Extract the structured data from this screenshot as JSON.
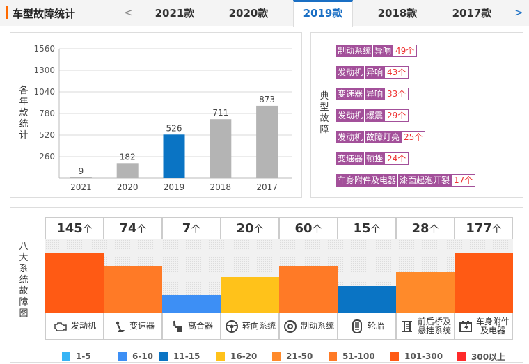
{
  "header": {
    "title": "车型故障统计",
    "prev_arrow": "<",
    "next_arrow": ">",
    "tabs": [
      {
        "label": "2021款",
        "active": false
      },
      {
        "label": "2020款",
        "active": false
      },
      {
        "label": "2019款",
        "active": true
      },
      {
        "label": "2018款",
        "active": false
      },
      {
        "label": "2017款",
        "active": false
      }
    ]
  },
  "chart_data": {
    "type": "bar",
    "ylabel": "各年款统计",
    "categories": [
      "2021",
      "2020",
      "2019",
      "2018",
      "2017"
    ],
    "values": [
      9,
      182,
      526,
      711,
      873
    ],
    "highlight": "2019",
    "yticks": [
      260,
      520,
      780,
      1040,
      1300,
      1560
    ],
    "ylim": [
      0,
      1560
    ],
    "colors": {
      "bar": "#b4b4b4",
      "highlight": "#0a74c4"
    }
  },
  "faults": {
    "label": "典型故障",
    "items": [
      {
        "system": "制动系统",
        "issue": "异响",
        "count": "49个"
      },
      {
        "system": "发动机",
        "issue": "异响",
        "count": "43个"
      },
      {
        "system": "变速器",
        "issue": "异响",
        "count": "33个"
      },
      {
        "system": "发动机",
        "issue": "爆震",
        "count": "29个"
      },
      {
        "system": "发动机",
        "issue": "故障灯亮",
        "count": "25个"
      },
      {
        "system": "变速器",
        "issue": "顿挫",
        "count": "24个"
      },
      {
        "system": "车身附件及电器",
        "issue": "漆面起泡开裂",
        "count": "17个"
      }
    ]
  },
  "systems": {
    "label": "八大系统故障图",
    "unit": "个",
    "items": [
      {
        "count": "145",
        "level": 0.82,
        "color": "#ff5a14",
        "name": "发动机",
        "icon": "engine-icon"
      },
      {
        "count": "74",
        "level": 0.64,
        "color": "#ff7a26",
        "name": "变速器",
        "icon": "gear-shift-icon"
      },
      {
        "count": "7",
        "level": 0.25,
        "color": "#3d8ff5",
        "name": "离合器",
        "icon": "clutch-pedal-icon"
      },
      {
        "count": "20",
        "level": 0.49,
        "color": "#ffc21a",
        "name": "转向系统",
        "icon": "steering-wheel-icon"
      },
      {
        "count": "60",
        "level": 0.64,
        "color": "#ff7a26",
        "name": "制动系统",
        "icon": "brake-disc-icon"
      },
      {
        "count": "15",
        "level": 0.37,
        "color": "#0a74c4",
        "name": "轮胎",
        "icon": "tire-icon"
      },
      {
        "count": "28",
        "level": 0.56,
        "color": "#ff8a2a",
        "name": "前后桥及悬挂系统",
        "icon": "suspension-icon"
      },
      {
        "count": "177",
        "level": 0.82,
        "color": "#ff5a14",
        "name": "车身附件及电器",
        "icon": "battery-icon"
      }
    ]
  },
  "legend": [
    {
      "label": "1-5",
      "color": "#36b4f5"
    },
    {
      "label": "6-10",
      "color": "#3d8ff5"
    },
    {
      "label": "11-15",
      "color": "#0a74c4"
    },
    {
      "label": "16-20",
      "color": "#ffc21a"
    },
    {
      "label": "21-50",
      "color": "#ff8a2a"
    },
    {
      "label": "51-100",
      "color": "#ff7a26"
    },
    {
      "label": "101-300",
      "color": "#ff5a14"
    },
    {
      "label": "300以上",
      "color": "#ff2a2a"
    }
  ]
}
